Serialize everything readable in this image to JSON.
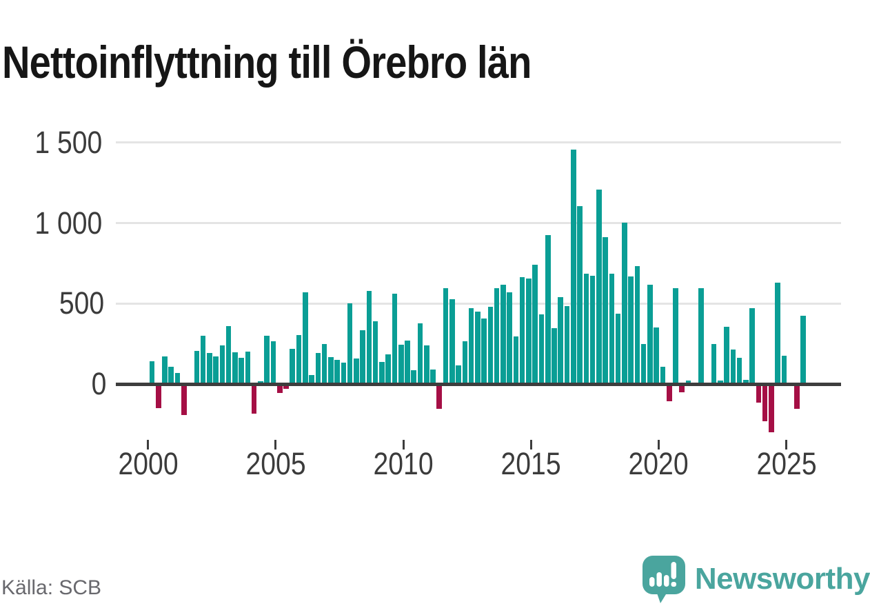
{
  "title": "Nettoinflyttning till Örebro län",
  "source": {
    "label": "Källa: SCB"
  },
  "brand": {
    "name": "Newsworthy",
    "color": "#4aa59e",
    "icon": "newsworthy-speech-bubble-bar-chart"
  },
  "colors": {
    "positive_bar": "#0a9e95",
    "negative_bar": "#a50f45",
    "grid_line": "#e4e4e4",
    "zero_line": "#3d3d3d",
    "axis_text": "#3b3b3b",
    "title_text": "#161616",
    "source_text": "#68686d",
    "background": "#ffffff"
  },
  "chart_data": {
    "type": "bar",
    "title": "Nettoinflyttning till Örebro län",
    "xlabel": "",
    "ylabel": "",
    "legend": "none",
    "grid": "horizontal",
    "ylim": [
      -320,
      1560
    ],
    "y_tick_values": [
      0,
      500,
      1000,
      1500
    ],
    "y_tick_labels": [
      "0",
      "500",
      "1 000",
      "1 500"
    ],
    "x_tick_labels": [
      "2000",
      "2005",
      "2010",
      "2015",
      "2020",
      "2025"
    ],
    "x_ticks_every_n_bars": 20,
    "categories": [
      "2000 Q1",
      "2000 Q2",
      "2000 Q3",
      "2000 Q4",
      "2001 Q1",
      "2001 Q2",
      "2001 Q3",
      "2001 Q4",
      "2002 Q1",
      "2002 Q2",
      "2002 Q3",
      "2002 Q4",
      "2003 Q1",
      "2003 Q2",
      "2003 Q3",
      "2003 Q4",
      "2004 Q1",
      "2004 Q2",
      "2004 Q3",
      "2004 Q4",
      "2005 Q1",
      "2005 Q2",
      "2005 Q3",
      "2005 Q4",
      "2006 Q1",
      "2006 Q2",
      "2006 Q3",
      "2006 Q4",
      "2007 Q1",
      "2007 Q2",
      "2007 Q3",
      "2007 Q4",
      "2008 Q1",
      "2008 Q2",
      "2008 Q3",
      "2008 Q4",
      "2009 Q1",
      "2009 Q2",
      "2009 Q3",
      "2009 Q4",
      "2010 Q1",
      "2010 Q2",
      "2010 Q3",
      "2010 Q4",
      "2011 Q1",
      "2011 Q2",
      "2011 Q3",
      "2011 Q4",
      "2012 Q1",
      "2012 Q2",
      "2012 Q3",
      "2012 Q4",
      "2013 Q1",
      "2013 Q2",
      "2013 Q3",
      "2013 Q4",
      "2014 Q1",
      "2014 Q2",
      "2014 Q3",
      "2014 Q4",
      "2015 Q1",
      "2015 Q2",
      "2015 Q3",
      "2015 Q4",
      "2016 Q1",
      "2016 Q2",
      "2016 Q3",
      "2016 Q4",
      "2017 Q1",
      "2017 Q2",
      "2017 Q3",
      "2017 Q4",
      "2018 Q1",
      "2018 Q2",
      "2018 Q3",
      "2018 Q4",
      "2019 Q1",
      "2019 Q2",
      "2019 Q3",
      "2019 Q4",
      "2020 Q1",
      "2020 Q2",
      "2020 Q3",
      "2020 Q4",
      "2021 Q1",
      "2021 Q2",
      "2021 Q3",
      "2021 Q4",
      "2022 Q1",
      "2022 Q2",
      "2022 Q3",
      "2022 Q4",
      "2023 Q1",
      "2023 Q2",
      "2023 Q3",
      "2023 Q4",
      "2024 Q1",
      "2024 Q2",
      "2024 Q3",
      "2024 Q4",
      "2025 Q1",
      "2025 Q2",
      "2025 Q3"
    ],
    "values": [
      140,
      -140,
      173,
      107,
      67,
      -180,
      0,
      207,
      299,
      193,
      171,
      239,
      359,
      196,
      162,
      201,
      -175,
      17,
      299,
      265,
      -43,
      -18,
      218,
      305,
      568,
      55,
      192,
      248,
      166,
      149,
      134,
      502,
      157,
      334,
      579,
      391,
      138,
      185,
      563,
      246,
      272,
      84,
      377,
      242,
      88,
      -144,
      596,
      525,
      117,
      267,
      471,
      448,
      405,
      478,
      596,
      617,
      570,
      295,
      666,
      654,
      743,
      434,
      925,
      349,
      541,
      484,
      1457,
      1106,
      686,
      674,
      1207,
      913,
      687,
      437,
      1003,
      669,
      734,
      249,
      618,
      350,
      105,
      -95,
      595,
      -40,
      20,
      0,
      596,
      0,
      249,
      20,
      356,
      213,
      161,
      24,
      470,
      -107,
      -221,
      -289,
      628,
      176,
      0,
      -145,
      424
    ]
  }
}
